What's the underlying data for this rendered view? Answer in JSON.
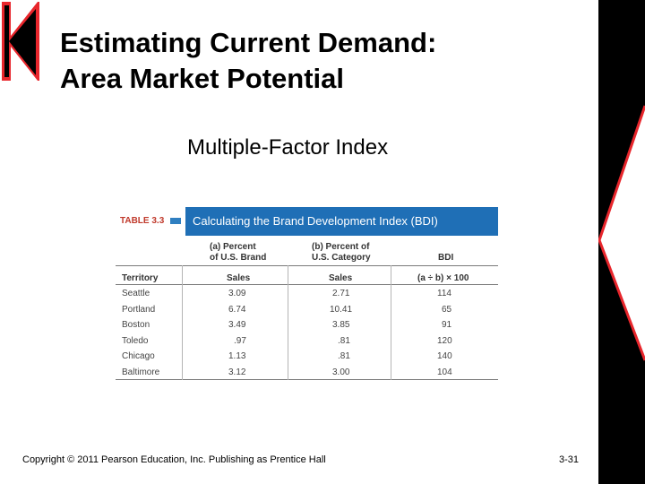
{
  "slide": {
    "title_line1": "Estimating Current Demand:",
    "title_line2": "Area Market Potential",
    "subtitle": "Multiple-Factor Index",
    "copyright": "Copyright © 2011 Pearson Education, Inc.  Publishing as Prentice Hall",
    "page_number": "3-31"
  },
  "table": {
    "label": "TABLE 3.3",
    "title": "Calculating the Brand Development Index (BDI)",
    "super_headers": [
      "(a) Percent\nof U.S. Brand",
      "(b) Percent of\nU.S. Category",
      "BDI"
    ],
    "columns": [
      "Territory",
      "Sales",
      "Sales",
      "(a ÷ b) × 100"
    ],
    "rows": [
      [
        "Seattle",
        "3.09",
        "2.71",
        "114"
      ],
      [
        "Portland",
        "6.74",
        "10.41",
        "65"
      ],
      [
        "Boston",
        "3.49",
        "3.85",
        "91"
      ],
      [
        "Toledo",
        ".97",
        ".81",
        "120"
      ],
      [
        "Chicago",
        "1.13",
        ".81",
        "140"
      ],
      [
        "Baltimore",
        "3.12",
        "3.00",
        "104"
      ]
    ]
  },
  "colors": {
    "accent_red": "#e8262c",
    "banner_blue": "#1f6fb6",
    "right_bar": "#000000"
  }
}
